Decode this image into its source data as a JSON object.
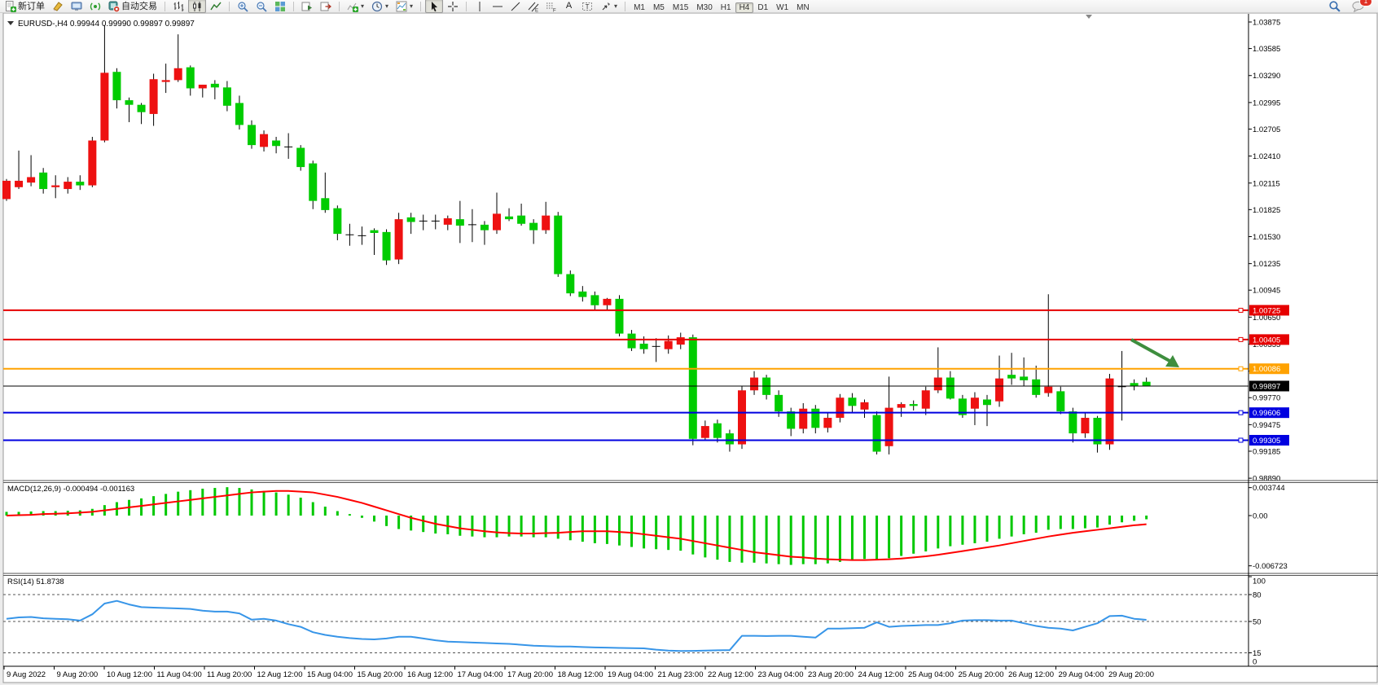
{
  "toolbar": {
    "new_order_label": "新订单",
    "autotrading_label": "自动交易",
    "chat_badge": "1",
    "timeframes": [
      "M1",
      "M5",
      "M15",
      "M30",
      "H1",
      "H4",
      "D1",
      "W1",
      "MN"
    ],
    "active_timeframe": "H4",
    "icon_names": [
      "new-order",
      "styler",
      "publish",
      "signal",
      "autotrading",
      "bar-chart",
      "candlesticks",
      "line-chart",
      "zoom-in",
      "zoom-out",
      "tile-windows",
      "auto-scroll",
      "chart-shift",
      "indicators",
      "periods",
      "templates",
      "cursor",
      "crosshair",
      "vertical-line",
      "horizontal-line",
      "trendline",
      "equidistant-channel",
      "fibonacci",
      "text",
      "text-label",
      "arrows",
      "search",
      "chat"
    ]
  },
  "chart": {
    "symbol_title": "EURUSD-,H4",
    "ohlc_title": "0.99944 0.99990 0.99897 0.99897"
  },
  "chart_data": {
    "type": "candlestick",
    "symbol": "EURUSD-",
    "timeframe": "H4",
    "price_scale": {
      "max": 1.03875,
      "min": 0.9889
    },
    "price_axis_ticks": [
      1.03875,
      1.03585,
      1.0329,
      1.02995,
      1.02705,
      1.0241,
      1.02115,
      1.01825,
      1.0153,
      1.01235,
      1.00945,
      1.0065,
      1.00355,
      1.0006,
      0.9977,
      0.99475,
      0.99185,
      0.9889
    ],
    "current_price": 0.99897,
    "hlines": [
      {
        "price": 1.00725,
        "label": "1.00725",
        "color": "#e60000",
        "width": 2
      },
      {
        "price": 1.00405,
        "label": "1.00405",
        "color": "#e60000",
        "width": 2
      },
      {
        "price": 1.00086,
        "label": "1.00086",
        "color": "#ffa200",
        "width": 2
      },
      {
        "price": 0.99897,
        "label": "0.99897",
        "color": "#000000",
        "width": 1
      },
      {
        "price": 0.99606,
        "label": "0.99606",
        "color": "#0000e0",
        "width": 2
      },
      {
        "price": 0.99305,
        "label": "0.99305",
        "color": "#0000e0",
        "width": 2
      }
    ],
    "x_labels": [
      "9 Aug 2022",
      "9 Aug 20:00",
      "10 Aug 12:00",
      "11 Aug 04:00",
      "11 Aug 20:00",
      "12 Aug 12:00",
      "15 Aug 04:00",
      "15 Aug 20:00",
      "16 Aug 12:00",
      "17 Aug 04:00",
      "17 Aug 20:00",
      "18 Aug 12:00",
      "19 Aug 04:00",
      "21 Aug 23:00",
      "22 Aug 12:00",
      "23 Aug 04:00",
      "23 Aug 20:00",
      "24 Aug 12:00",
      "25 Aug 04:00",
      "25 Aug 20:00",
      "26 Aug 12:00",
      "29 Aug 04:00",
      "29 Aug 20:00"
    ],
    "candles": [
      [
        1.0194,
        1.0216,
        1.0192,
        1.0214
      ],
      [
        1.0207,
        1.0247,
        1.0205,
        1.0214
      ],
      [
        1.0212,
        1.0242,
        1.0208,
        1.0218
      ],
      [
        1.0223,
        1.0228,
        1.02,
        1.0205
      ],
      [
        1.0207,
        1.022,
        1.0195,
        1.0209
      ],
      [
        1.0205,
        1.0218,
        1.02,
        1.0213
      ],
      [
        1.0213,
        1.022,
        1.0204,
        1.0209
      ],
      [
        1.0209,
        1.0262,
        1.0207,
        1.0258
      ],
      [
        1.0258,
        1.0384,
        1.0256,
        1.0332
      ],
      [
        1.0333,
        1.0337,
        1.0293,
        1.0302
      ],
      [
        1.0302,
        1.0305,
        1.0278,
        1.0297
      ],
      [
        1.0297,
        1.0299,
        1.0276,
        1.0289
      ],
      [
        1.0287,
        1.0331,
        1.0274,
        1.0325
      ],
      [
        1.0322,
        1.0342,
        1.031,
        1.0324
      ],
      [
        1.0324,
        1.0374,
        1.0322,
        1.0337
      ],
      [
        1.0338,
        1.034,
        1.0307,
        1.0315
      ],
      [
        1.0315,
        1.0319,
        1.0305,
        1.0319
      ],
      [
        1.032,
        1.0324,
        1.0303,
        1.0316
      ],
      [
        1.0316,
        1.0323,
        1.029,
        1.0296
      ],
      [
        1.0299,
        1.0307,
        1.027,
        1.0275
      ],
      [
        1.0275,
        1.028,
        1.0249,
        1.0253
      ],
      [
        1.0251,
        1.0269,
        1.0246,
        1.0265
      ],
      [
        1.0258,
        1.0262,
        1.0244,
        1.0252
      ],
      [
        1.0251,
        1.0266,
        1.0238,
        1.025
      ],
      [
        1.025,
        1.0253,
        1.0225,
        1.0229
      ],
      [
        1.0233,
        1.0236,
        1.0183,
        1.0192
      ],
      [
        1.0195,
        1.0223,
        1.0179,
        1.0182
      ],
      [
        1.0184,
        1.0187,
        1.0149,
        1.0156
      ],
      [
        1.0155,
        1.0167,
        1.0143,
        1.0155
      ],
      [
        1.0154,
        1.0164,
        1.0144,
        1.0153
      ],
      [
        1.016,
        1.0162,
        1.0133,
        1.0157
      ],
      [
        1.0158,
        1.0161,
        1.0122,
        1.0127
      ],
      [
        1.0128,
        1.0179,
        1.0123,
        1.0172
      ],
      [
        1.0174,
        1.0179,
        1.0156,
        1.0169
      ],
      [
        1.017,
        1.0177,
        1.016,
        1.0169
      ],
      [
        1.0169,
        1.0177,
        1.0161,
        1.017
      ],
      [
        1.0166,
        1.0176,
        1.016,
        1.0173
      ],
      [
        1.0172,
        1.0192,
        1.0146,
        1.0165
      ],
      [
        1.0166,
        1.0183,
        1.0147,
        1.0166
      ],
      [
        1.0166,
        1.017,
        1.0144,
        1.016
      ],
      [
        1.016,
        1.0201,
        1.0156,
        1.0178
      ],
      [
        1.0175,
        1.0184,
        1.017,
        1.0172
      ],
      [
        1.0176,
        1.0189,
        1.0165,
        1.0167
      ],
      [
        1.0168,
        1.0172,
        1.0145,
        1.016
      ],
      [
        1.016,
        1.0191,
        1.0156,
        1.0176
      ],
      [
        1.0176,
        1.018,
        1.0109,
        1.0112
      ],
      [
        1.0112,
        1.0116,
        1.0088,
        1.0091
      ],
      [
        1.0093,
        1.0099,
        1.0082,
        1.0087
      ],
      [
        1.0089,
        1.0093,
        1.0073,
        1.0078
      ],
      [
        1.0078,
        1.0086,
        1.0072,
        1.0085
      ],
      [
        1.0085,
        1.0089,
        1.0044,
        1.0047
      ],
      [
        1.0047,
        1.0051,
        1.0028,
        1.0031
      ],
      [
        1.0036,
        1.0044,
        1.0025,
        1.003
      ],
      [
        1.0032,
        1.0042,
        1.0016,
        1.0033
      ],
      [
        1.003,
        1.0045,
        1.0025,
        1.0039
      ],
      [
        1.0035,
        1.0048,
        1.003,
        1.0043
      ],
      [
        1.0043,
        1.0046,
        0.9925,
        0.9932
      ],
      [
        0.9933,
        0.9952,
        0.993,
        0.9946
      ],
      [
        0.9949,
        0.9953,
        0.9928,
        0.9933
      ],
      [
        0.9938,
        0.9942,
        0.9918,
        0.9926
      ],
      [
        0.9926,
        0.999,
        0.9921,
        0.9985
      ],
      [
        0.9985,
        1.0006,
        0.998,
        0.9999
      ],
      [
        0.9999,
        1.0002,
        0.9975,
        0.998
      ],
      [
        0.998,
        0.9985,
        0.9956,
        0.9962
      ],
      [
        0.9962,
        0.9966,
        0.9935,
        0.9943
      ],
      [
        0.9943,
        0.9971,
        0.9938,
        0.9965
      ],
      [
        0.9965,
        0.9969,
        0.9938,
        0.9944
      ],
      [
        0.9944,
        0.996,
        0.9939,
        0.9955
      ],
      [
        0.9955,
        0.9981,
        0.995,
        0.9977
      ],
      [
        0.9977,
        0.9982,
        0.996,
        0.9968
      ],
      [
        0.9964,
        0.9975,
        0.9955,
        0.9972
      ],
      [
        0.9958,
        0.9962,
        0.9915,
        0.9918
      ],
      [
        0.9924,
        1.0,
        0.9915,
        0.9966
      ],
      [
        0.9966,
        0.9972,
        0.9956,
        0.997
      ],
      [
        0.997,
        0.9974,
        0.9963,
        0.9968
      ],
      [
        0.9965,
        0.9989,
        0.9958,
        0.9985
      ],
      [
        0.9985,
        1.0032,
        0.9982,
        0.9999
      ],
      [
        0.9999,
        1.0006,
        0.9975,
        0.9976
      ],
      [
        0.9976,
        0.998,
        0.9955,
        0.9958
      ],
      [
        0.9965,
        0.9983,
        0.9947,
        0.9977
      ],
      [
        0.9975,
        0.998,
        0.9946,
        0.9969
      ],
      [
        0.9973,
        1.0023,
        0.9967,
        0.9998
      ],
      [
        1.0002,
        1.0026,
        0.9991,
        0.9998
      ],
      [
        1.0,
        1.0021,
        0.999,
        0.9996
      ],
      [
        0.9997,
        1.0012,
        0.9977,
        0.998
      ],
      [
        0.9982,
        1.009,
        0.9978,
        0.9989
      ],
      [
        0.9984,
        0.9989,
        0.9959,
        0.9962
      ],
      [
        0.9962,
        0.9966,
        0.9928,
        0.9938
      ],
      [
        0.9938,
        0.996,
        0.9933,
        0.9955
      ],
      [
        0.9955,
        0.9957,
        0.9917,
        0.9926
      ],
      [
        0.9926,
        1.0003,
        0.992,
        0.9998
      ],
      [
        0.9988,
        1.0028,
        0.9952,
        0.9989
      ],
      [
        0.9993,
        0.9997,
        0.9985,
        0.999
      ],
      [
        0.99944,
        0.9999,
        0.99897,
        0.99897
      ]
    ],
    "macd": {
      "label": "MACD(12,26,9)",
      "values_text": "-0.000494 -0.001163",
      "axis_ticks": [
        {
          "v": 0.003744,
          "label": "0.003744"
        },
        {
          "v": 0,
          "label": "0.00"
        },
        {
          "v": -0.006723,
          "label": "-0.006723"
        }
      ],
      "hist": [
        0.0005,
        0.0005,
        0.00055,
        0.0006,
        0.0006,
        0.00065,
        0.0007,
        0.0009,
        0.0014,
        0.0018,
        0.0021,
        0.0023,
        0.0026,
        0.0029,
        0.0032,
        0.0034,
        0.0036,
        0.0037,
        0.0038,
        0.0037,
        0.0035,
        0.0033,
        0.0031,
        0.0028,
        0.0024,
        0.0018,
        0.0012,
        0.0006,
        0.0002,
        -0.0003,
        -0.0008,
        -0.0014,
        -0.0018,
        -0.002,
        -0.0022,
        -0.0024,
        -0.0025,
        -0.0027,
        -0.0028,
        -0.0029,
        -0.0029,
        -0.0028,
        -0.0028,
        -0.0029,
        -0.0029,
        -0.0031,
        -0.0033,
        -0.0035,
        -0.0037,
        -0.0038,
        -0.004,
        -0.0042,
        -0.0044,
        -0.0045,
        -0.0046,
        -0.0047,
        -0.0052,
        -0.0056,
        -0.0059,
        -0.0062,
        -0.0063,
        -0.0063,
        -0.0064,
        -0.0065,
        -0.0066,
        -0.0065,
        -0.0065,
        -0.0064,
        -0.0062,
        -0.006,
        -0.0058,
        -0.0059,
        -0.0057,
        -0.0054,
        -0.0051,
        -0.0048,
        -0.0044,
        -0.0041,
        -0.0039,
        -0.0037,
        -0.0035,
        -0.0031,
        -0.0028,
        -0.0025,
        -0.0023,
        -0.0019,
        -0.0018,
        -0.0018,
        -0.0017,
        -0.0016,
        -0.0012,
        -0.0009,
        -0.0007,
        -0.000494
      ],
      "signal": [
        0.0,
        5e-05,
        0.0001,
        0.0002,
        0.00025,
        0.0003,
        0.0004,
        0.0005,
        0.0007,
        0.0009,
        0.0011,
        0.0013,
        0.0015,
        0.0017,
        0.0019,
        0.0021,
        0.0023,
        0.0025,
        0.0027,
        0.0029,
        0.0031,
        0.0032,
        0.0033,
        0.0033,
        0.0032,
        0.0031,
        0.0028,
        0.0025,
        0.0021,
        0.0017,
        0.0012,
        0.0007,
        0.0002,
        -0.0003,
        -0.0007,
        -0.0011,
        -0.0014,
        -0.0017,
        -0.0019,
        -0.0021,
        -0.00225,
        -0.00235,
        -0.0024,
        -0.0024,
        -0.00235,
        -0.0023,
        -0.0022,
        -0.0021,
        -0.0021,
        -0.0021,
        -0.0022,
        -0.0023,
        -0.0025,
        -0.0027,
        -0.0029,
        -0.0031,
        -0.0034,
        -0.0037,
        -0.004,
        -0.0043,
        -0.0046,
        -0.0049,
        -0.0051,
        -0.0053,
        -0.0055,
        -0.0056,
        -0.00575,
        -0.00585,
        -0.0059,
        -0.00595,
        -0.00595,
        -0.0059,
        -0.00585,
        -0.00575,
        -0.0056,
        -0.00545,
        -0.00525,
        -0.005,
        -0.00475,
        -0.0045,
        -0.00425,
        -0.004,
        -0.0037,
        -0.0034,
        -0.0031,
        -0.0028,
        -0.00255,
        -0.0023,
        -0.0021,
        -0.0019,
        -0.0017,
        -0.0015,
        -0.0013,
        -0.001163
      ]
    },
    "rsi": {
      "label": "RSI(14)",
      "value_text": "51.8738",
      "levels": [
        80,
        50,
        15
      ],
      "axis_ticks": [
        {
          "v": 100,
          "label": "100"
        },
        {
          "v": 80,
          "label": "80"
        },
        {
          "v": 50,
          "label": "50"
        },
        {
          "v": 15,
          "label": "15"
        },
        {
          "v": 0,
          "label": "0"
        }
      ],
      "values": [
        53,
        54.5,
        55,
        53.5,
        53,
        52.5,
        51,
        58,
        70,
        73,
        69,
        66,
        65.5,
        65,
        64.5,
        64,
        62,
        61,
        61,
        59,
        52,
        53,
        51,
        47,
        44,
        38,
        35,
        33,
        31.5,
        30.5,
        30,
        31,
        33,
        33,
        31,
        29,
        27.5,
        27,
        26.5,
        26,
        25.5,
        25,
        24,
        23,
        22.5,
        22,
        22,
        21.5,
        21,
        20.8,
        20.5,
        20.2,
        20,
        18.5,
        17.5,
        17,
        17.2,
        17.5,
        17.8,
        18,
        34,
        34,
        33.8,
        34,
        34,
        33,
        32,
        42,
        42,
        42.5,
        43,
        49,
        44,
        45,
        45.5,
        46,
        46,
        48,
        51,
        51.5,
        51.5,
        51,
        51,
        48,
        45,
        43,
        42,
        40,
        44,
        48,
        56,
        56.5,
        53,
        51.87
      ]
    },
    "annotation_arrow": {
      "from": [
        1389,
        417
      ],
      "to": [
        1436,
        443
      ],
      "tip": [
        1448,
        451
      ],
      "color": "#3e8e3e"
    },
    "colors": {
      "up_candle": "#ee1111",
      "down_candle": "#00cc00",
      "wick": "#000000",
      "macd_hist": "#00c800",
      "macd_signal": "#ff0000",
      "rsi_line": "#3795e8"
    }
  }
}
